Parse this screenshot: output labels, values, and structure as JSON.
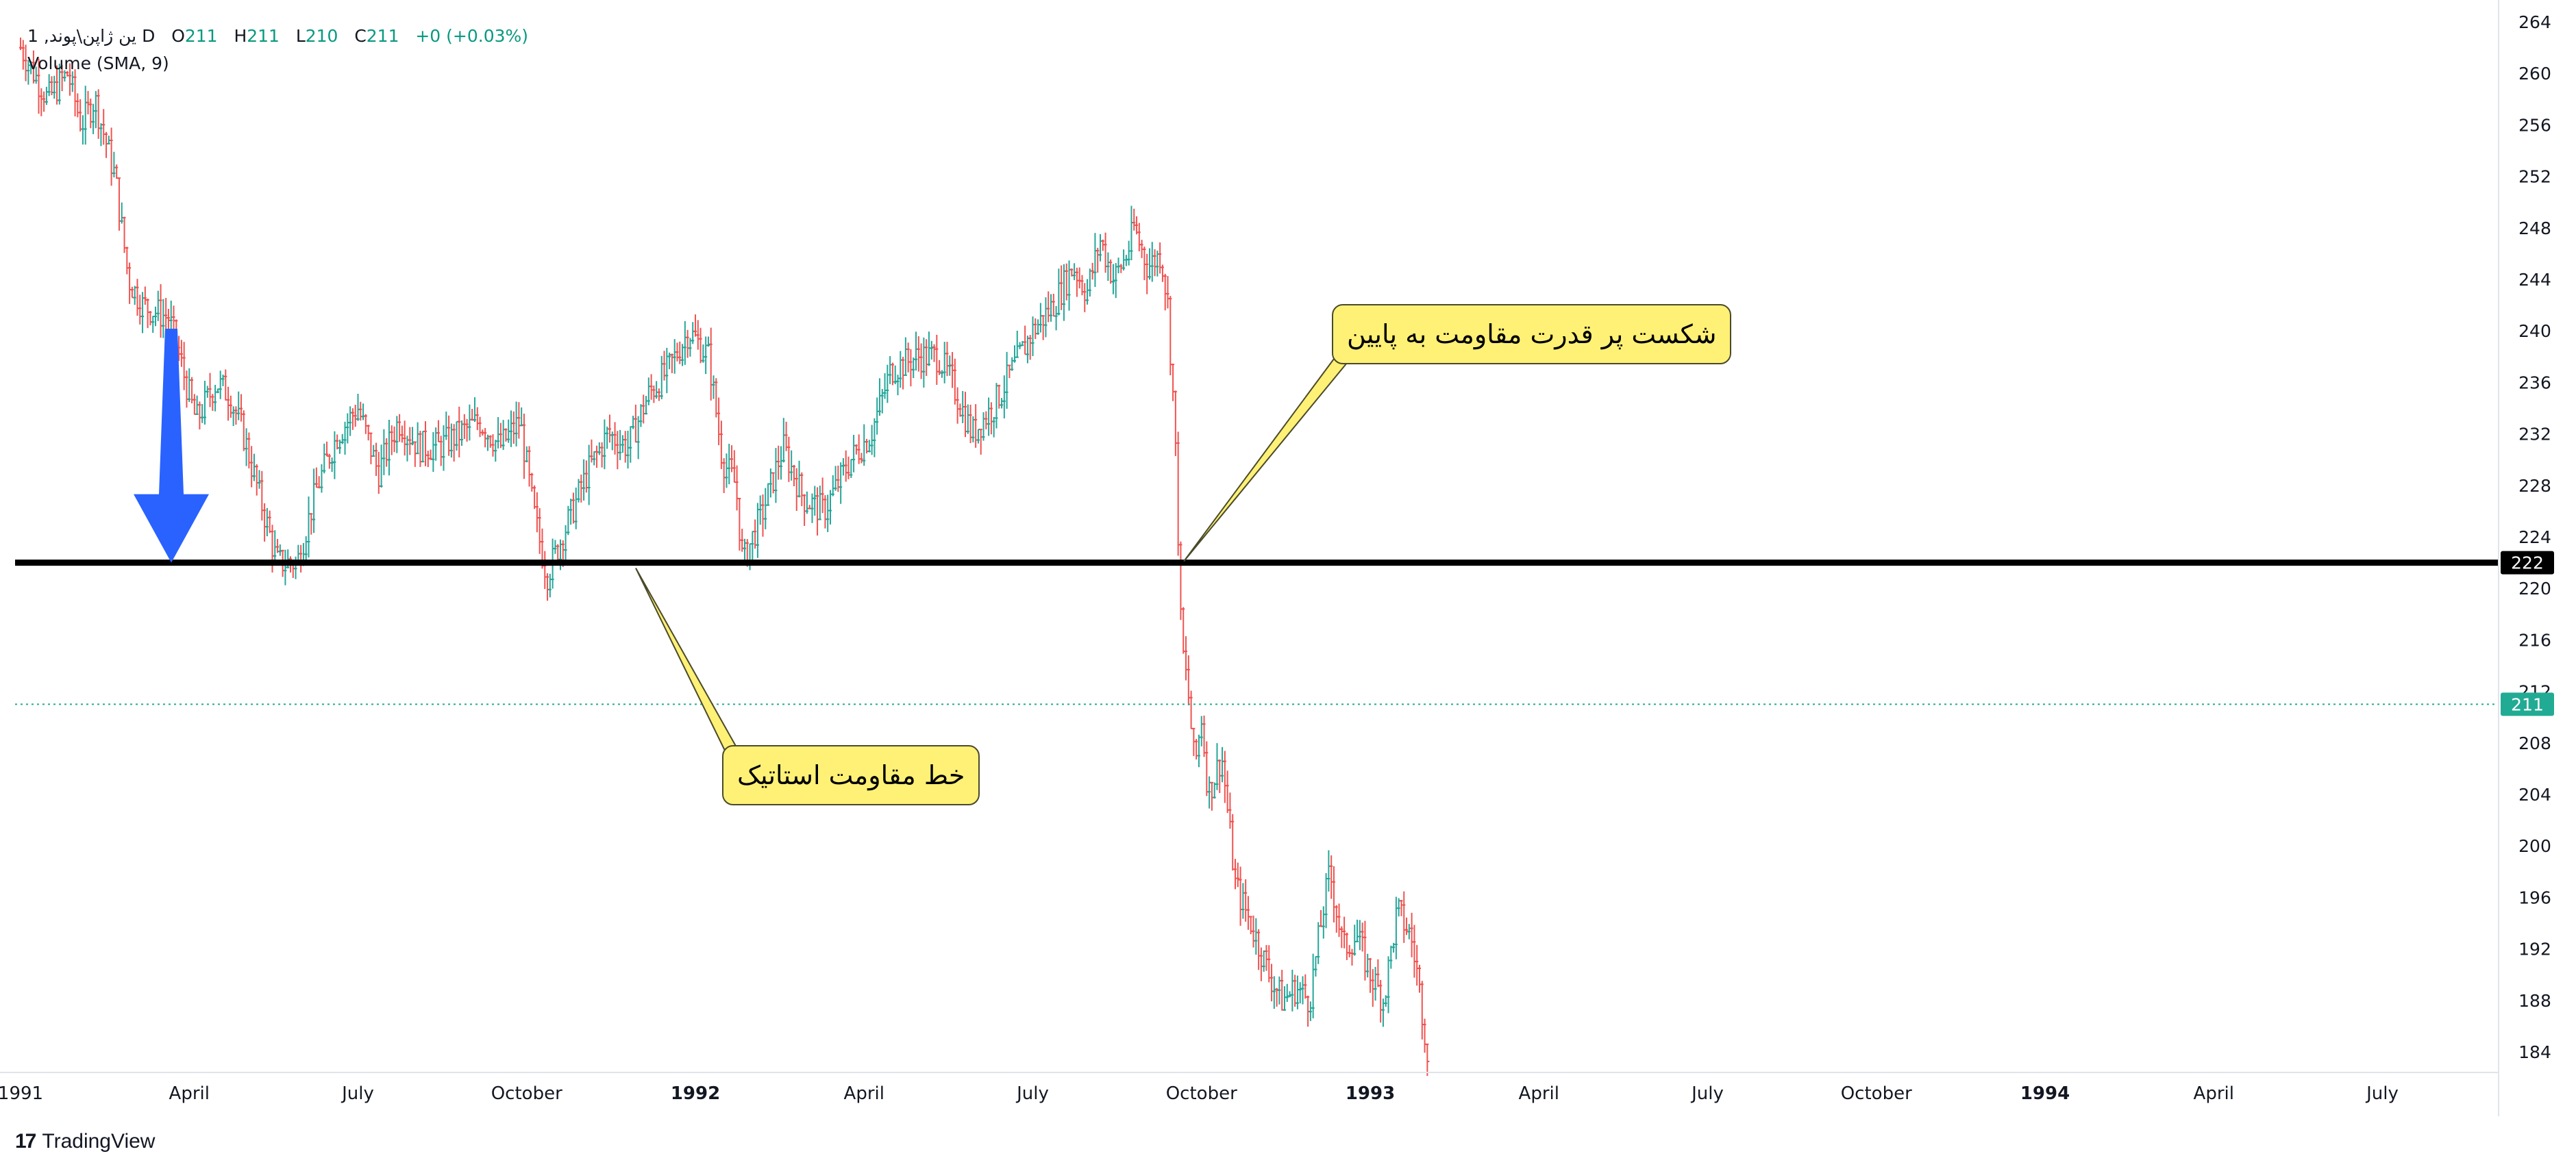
{
  "legend": {
    "symbol": "1 ,ین ژاپن\\پوند D",
    "o_label": "O",
    "o_value": "211",
    "h_label": "H",
    "h_value": "211",
    "l_label": "L",
    "l_value": "210",
    "c_label": "C",
    "c_value": "211",
    "change": "+0 (+0.03%)",
    "volume_label": "Volume (SMA, 9)"
  },
  "annotations": {
    "breakdown_text": "شکست پر قدرت مقاومت به پایین",
    "resistance_text": "خط مقاومت استاتیک"
  },
  "brand": {
    "name": "TradingView",
    "logo": "17"
  },
  "colors": {
    "up": "#26a69a",
    "down": "#ef5350",
    "resistance": "#000000",
    "arrow": "#2962ff",
    "callout": "#fff176",
    "last_price": "#22ab94"
  },
  "chart_data": {
    "type": "candlestick",
    "interval": "1D",
    "ylim": [
      182,
      265
    ],
    "y_ticks": [
      184,
      188,
      192,
      196,
      200,
      204,
      208,
      212,
      216,
      220,
      224,
      228,
      232,
      236,
      240,
      244,
      248,
      252,
      256,
      260,
      264
    ],
    "x_labels": [
      "1991",
      "April",
      "July",
      "October",
      "1992",
      "April",
      "July",
      "October",
      "1993",
      "April",
      "July",
      "October",
      "1994",
      "April",
      "July"
    ],
    "bold_x_labels": [
      "1992",
      "1993",
      "1994"
    ],
    "resistance_level": 222,
    "last_price": 211,
    "series_path": [
      [
        0,
        262
      ],
      [
        0.04,
        258
      ],
      [
        0.07,
        260
      ],
      [
        0.09,
        256
      ],
      [
        0.11,
        258
      ],
      [
        0.14,
        252
      ],
      [
        0.16,
        244
      ],
      [
        0.18,
        242
      ],
      [
        0.22,
        241
      ],
      [
        0.24,
        237
      ],
      [
        0.26,
        233
      ],
      [
        0.29,
        236
      ],
      [
        0.31,
        235
      ],
      [
        0.33,
        232
      ],
      [
        0.36,
        226
      ],
      [
        0.38,
        222
      ],
      [
        0.41,
        222
      ],
      [
        0.44,
        228
      ],
      [
        0.47,
        232
      ],
      [
        0.5,
        234
      ],
      [
        0.53,
        229
      ],
      [
        0.56,
        233
      ],
      [
        0.59,
        231
      ],
      [
        0.62,
        231
      ],
      [
        0.65,
        232
      ],
      [
        0.68,
        233
      ],
      [
        0.71,
        231
      ],
      [
        0.74,
        233
      ],
      [
        0.76,
        226
      ],
      [
        0.78,
        221
      ],
      [
        0.81,
        225
      ],
      [
        0.84,
        229
      ],
      [
        0.87,
        232
      ],
      [
        0.9,
        231
      ],
      [
        0.93,
        235
      ],
      [
        0.96,
        237
      ],
      [
        0.99,
        240
      ],
      [
        1.02,
        238
      ],
      [
        1.04,
        230
      ],
      [
        1.06,
        228
      ],
      [
        1.07,
        222
      ],
      [
        1.1,
        226
      ],
      [
        1.13,
        231
      ],
      [
        1.16,
        227
      ],
      [
        1.19,
        226
      ],
      [
        1.23,
        230
      ],
      [
        1.26,
        232
      ],
      [
        1.29,
        237
      ],
      [
        1.33,
        238
      ],
      [
        1.36,
        238
      ],
      [
        1.38,
        236
      ],
      [
        1.41,
        232
      ],
      [
        1.44,
        234
      ],
      [
        1.47,
        237
      ],
      [
        1.5,
        240
      ],
      [
        1.53,
        242
      ],
      [
        1.56,
        245
      ],
      [
        1.58,
        243
      ],
      [
        1.6,
        247
      ],
      [
        1.62,
        244
      ],
      [
        1.64,
        246
      ],
      [
        1.65,
        248
      ],
      [
        1.67,
        245
      ],
      [
        1.69,
        246
      ],
      [
        1.7,
        242
      ],
      [
        1.71,
        233
      ],
      [
        1.715,
        225
      ],
      [
        1.72,
        216
      ],
      [
        1.73,
        212
      ],
      [
        1.74,
        206
      ],
      [
        1.75,
        210
      ],
      [
        1.76,
        204
      ],
      [
        1.78,
        207
      ],
      [
        1.8,
        197
      ],
      [
        1.83,
        193
      ],
      [
        1.85,
        190
      ],
      [
        1.87,
        188
      ],
      [
        1.89,
        189
      ],
      [
        1.91,
        188
      ],
      [
        1.93,
        195
      ],
      [
        1.94,
        198
      ],
      [
        1.96,
        192
      ],
      [
        1.98,
        193
      ],
      [
        2.0,
        190
      ],
      [
        2.02,
        188
      ],
      [
        2.04,
        195
      ],
      [
        2.06,
        193
      ],
      [
        2.07,
        190
      ],
      [
        2.08,
        186
      ],
      [
        2.085,
        184
      ]
    ]
  }
}
